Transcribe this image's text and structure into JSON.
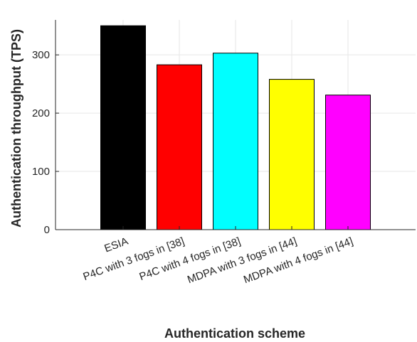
{
  "chart_data": {
    "type": "bar",
    "title": "",
    "xlabel": "Authentication scheme",
    "ylabel": "Authentication throughput (TPS)",
    "categories": [
      "ESIA",
      "P4C with 3 fogs in [38]",
      "P4C with 4 fogs in [38]",
      "MDPA with 3 fogs in [44]",
      "MDPA with 4 fogs in [44]"
    ],
    "values": [
      350,
      283,
      303,
      258,
      231
    ],
    "colors": [
      "#000000",
      "#ff0000",
      "#00ffff",
      "#ffff00",
      "#ff00ff"
    ],
    "ylim": [
      0,
      360
    ],
    "yticks": [
      0,
      100,
      200,
      300
    ],
    "grid": true,
    "legend": "none"
  }
}
